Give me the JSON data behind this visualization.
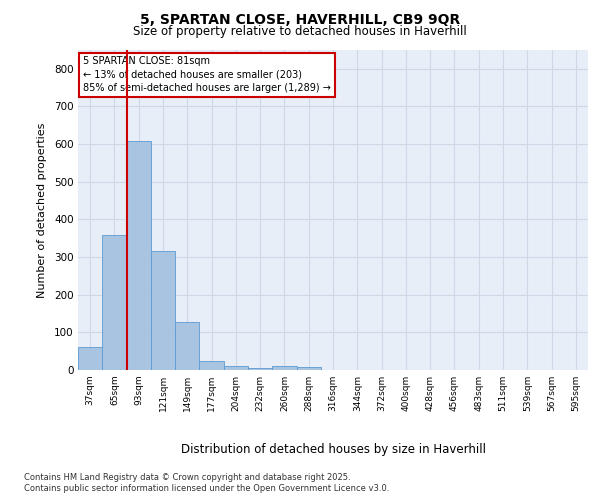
{
  "title_line1": "5, SPARTAN CLOSE, HAVERHILL, CB9 9QR",
  "title_line2": "Size of property relative to detached houses in Haverhill",
  "xlabel": "Distribution of detached houses by size in Haverhill",
  "ylabel": "Number of detached properties",
  "categories": [
    "37sqm",
    "65sqm",
    "93sqm",
    "121sqm",
    "149sqm",
    "177sqm",
    "204sqm",
    "232sqm",
    "260sqm",
    "288sqm",
    "316sqm",
    "344sqm",
    "372sqm",
    "400sqm",
    "428sqm",
    "456sqm",
    "483sqm",
    "511sqm",
    "539sqm",
    "567sqm",
    "595sqm"
  ],
  "values": [
    62,
    358,
    608,
    315,
    128,
    25,
    10,
    5,
    10,
    8,
    0,
    0,
    0,
    0,
    0,
    0,
    0,
    0,
    0,
    0,
    0
  ],
  "bar_color": "#a8c4e0",
  "bar_edge_color": "#5b9bd5",
  "grid_color": "#d0d8e8",
  "background_color": "#e8eef8",
  "annotation_box_text": "5 SPARTAN CLOSE: 81sqm\n← 13% of detached houses are smaller (203)\n85% of semi-detached houses are larger (1,289) →",
  "vline_x": 1.5,
  "vline_color": "#cc0000",
  "ylim": [
    0,
    850
  ],
  "yticks": [
    0,
    100,
    200,
    300,
    400,
    500,
    600,
    700,
    800
  ],
  "footer_line1": "Contains HM Land Registry data © Crown copyright and database right 2025.",
  "footer_line2": "Contains public sector information licensed under the Open Government Licence v3.0."
}
